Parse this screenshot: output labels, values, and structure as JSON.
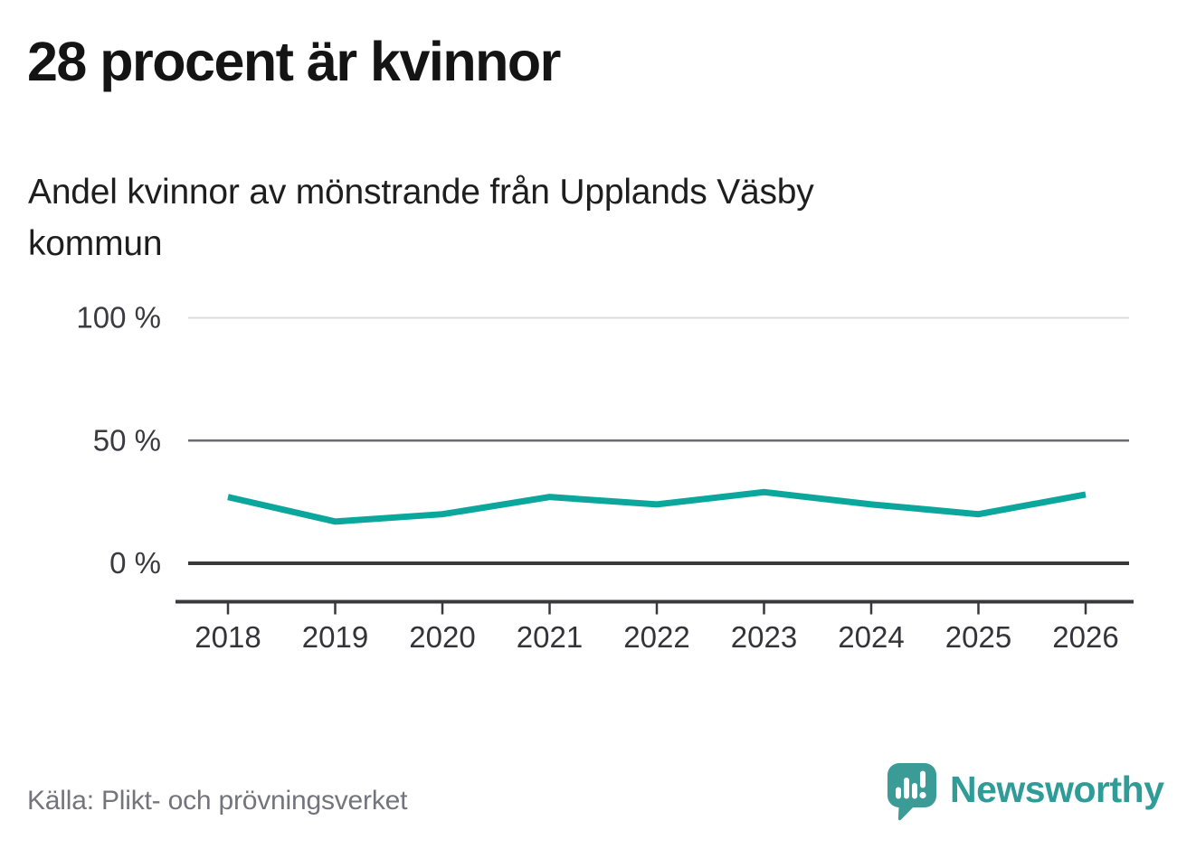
{
  "title": "28 procent är kvinnor",
  "subtitle_lines": [
    "Andel kvinnor av mönstrande från Upplands Väsby",
    "kommun"
  ],
  "footer": {
    "source": "Källa: Plikt- och prövningsverket"
  },
  "logo": {
    "text": "Newsworthy"
  },
  "colors": {
    "accent": "#0ba79c",
    "logo": "#3a9b97",
    "grid_light": "#dcdcdc",
    "grid_mid": "#6b6b72",
    "grid_dark": "#38383d",
    "axis_text": "#3a3a40",
    "footer_text": "#74747c"
  },
  "chart_data": {
    "type": "line",
    "title": "28 procent är kvinnor",
    "subtitle": "Andel kvinnor av mönstrande från Upplands Väsby kommun",
    "categories": [
      "2018",
      "2019",
      "2020",
      "2021",
      "2022",
      "2023",
      "2024",
      "2025",
      "2026"
    ],
    "series": [
      {
        "name": "Andel kvinnor av mönstrande",
        "values": [
          27,
          17,
          20,
          27,
          24,
          29,
          24,
          20,
          28
        ]
      }
    ],
    "unit": "%",
    "ylim": [
      0,
      100
    ],
    "yticks": [
      {
        "value": 100,
        "label": "100 %"
      },
      {
        "value": 50,
        "label": "50 %"
      },
      {
        "value": 0,
        "label": "0 %"
      }
    ],
    "grid": "horizontal",
    "legend": "none",
    "line_color": "#0ba79c",
    "source": "Källa: Plikt- och prövningsverket"
  }
}
